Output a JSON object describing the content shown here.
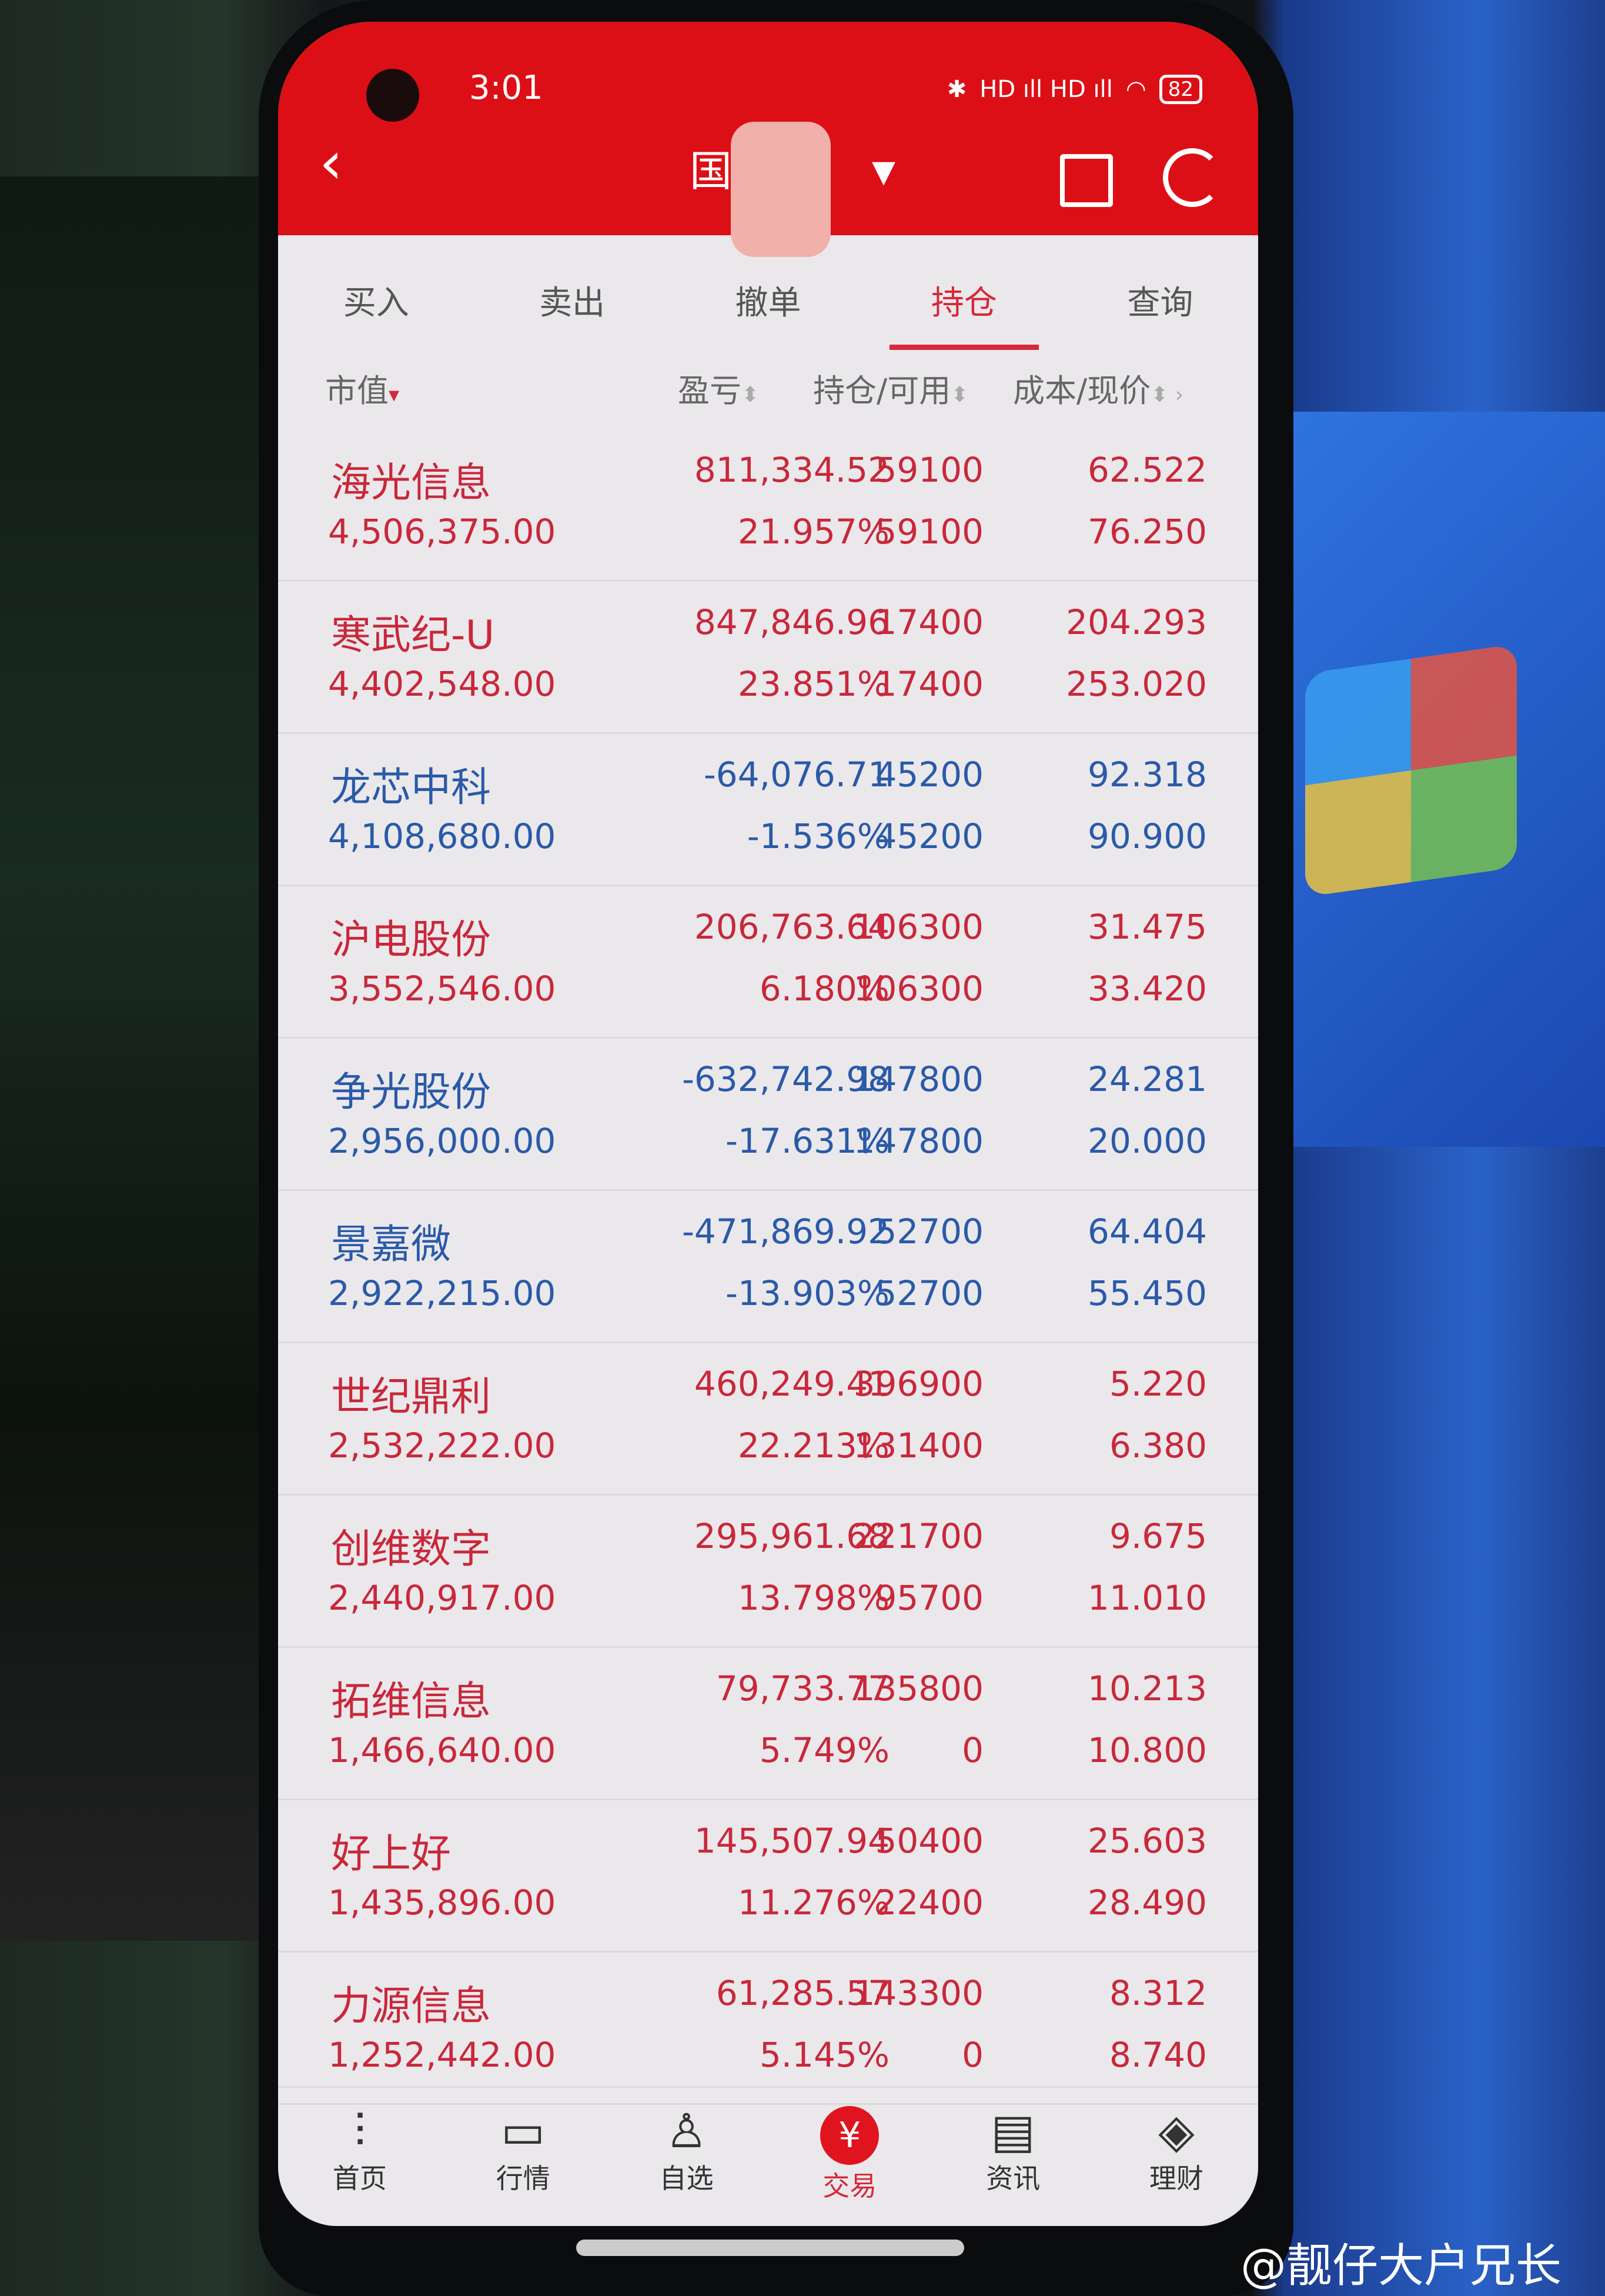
{
  "status": {
    "time": "3:01",
    "battery": "82",
    "signal": "HD ıll HD ıll"
  },
  "header": {
    "title": "国  券",
    "title_masked": true
  },
  "tabs": [
    {
      "label": "买入"
    },
    {
      "label": "卖出"
    },
    {
      "label": "撤单"
    },
    {
      "label": "持仓",
      "active": true
    },
    {
      "label": "查询"
    }
  ],
  "columns": {
    "market_value": "市值",
    "pnl": "盈亏",
    "position": "持仓/可用",
    "cost_price": "成本/现价"
  },
  "holdings": [
    {
      "name": "海光信息",
      "market_value": "4,506,375.00",
      "pnl": "811,334.52",
      "pnl_pct": "21.957%",
      "position": "59100",
      "available": "59100",
      "cost": "62.522",
      "price": "76.250",
      "neg": false
    },
    {
      "name": "寒武纪-U",
      "market_value": "4,402,548.00",
      "pnl": "847,846.96",
      "pnl_pct": "23.851%",
      "position": "17400",
      "available": "17400",
      "cost": "204.293",
      "price": "253.020",
      "neg": false
    },
    {
      "name": "龙芯中科",
      "market_value": "4,108,680.00",
      "pnl": "-64,076.71",
      "pnl_pct": "-1.536%",
      "position": "45200",
      "available": "45200",
      "cost": "92.318",
      "price": "90.900",
      "neg": true
    },
    {
      "name": "沪电股份",
      "market_value": "3,552,546.00",
      "pnl": "206,763.64",
      "pnl_pct": "6.180%",
      "position": "106300",
      "available": "106300",
      "cost": "31.475",
      "price": "33.420",
      "neg": false
    },
    {
      "name": "争光股份",
      "market_value": "2,956,000.00",
      "pnl": "-632,742.98",
      "pnl_pct": "-17.631%",
      "position": "147800",
      "available": "147800",
      "cost": "24.281",
      "price": "20.000",
      "neg": true
    },
    {
      "name": "景嘉微",
      "market_value": "2,922,215.00",
      "pnl": "-471,869.92",
      "pnl_pct": "-13.903%",
      "position": "52700",
      "available": "52700",
      "cost": "64.404",
      "price": "55.450",
      "neg": true
    },
    {
      "name": "世纪鼎利",
      "market_value": "2,532,222.00",
      "pnl": "460,249.41",
      "pnl_pct": "22.213%",
      "position": "396900",
      "available": "131400",
      "cost": "5.220",
      "price": "6.380",
      "neg": false
    },
    {
      "name": "创维数字",
      "market_value": "2,440,917.00",
      "pnl": "295,961.68",
      "pnl_pct": "13.798%",
      "position": "221700",
      "available": "95700",
      "cost": "9.675",
      "price": "11.010",
      "neg": false
    },
    {
      "name": "拓维信息",
      "market_value": "1,466,640.00",
      "pnl": "79,733.77",
      "pnl_pct": "5.749%",
      "position": "135800",
      "available": "0",
      "cost": "10.213",
      "price": "10.800",
      "neg": false
    },
    {
      "name": "好上好",
      "market_value": "1,435,896.00",
      "pnl": "145,507.94",
      "pnl_pct": "11.276%",
      "position": "50400",
      "available": "22400",
      "cost": "25.603",
      "price": "28.490",
      "neg": false
    },
    {
      "name": "力源信息",
      "market_value": "1,252,442.00",
      "pnl": "61,285.57",
      "pnl_pct": "5.145%",
      "position": "143300",
      "available": "0",
      "cost": "8.312",
      "price": "8.740",
      "neg": false
    }
  ],
  "nav": [
    {
      "label": "首页",
      "icon": "candlestick-icon"
    },
    {
      "label": "行情",
      "icon": "chart-icon"
    },
    {
      "label": "自选",
      "icon": "person-check-icon"
    },
    {
      "label": "交易",
      "icon": "yen-icon",
      "active": true
    },
    {
      "label": "资讯",
      "icon": "document-icon"
    },
    {
      "label": "理财",
      "icon": "money-bag-icon"
    }
  ],
  "watermark": "@靓仔大户兄长",
  "colors": {
    "brand_red": "#dd0f16",
    "gain": "#c8283a",
    "loss": "#2a5aa8"
  }
}
